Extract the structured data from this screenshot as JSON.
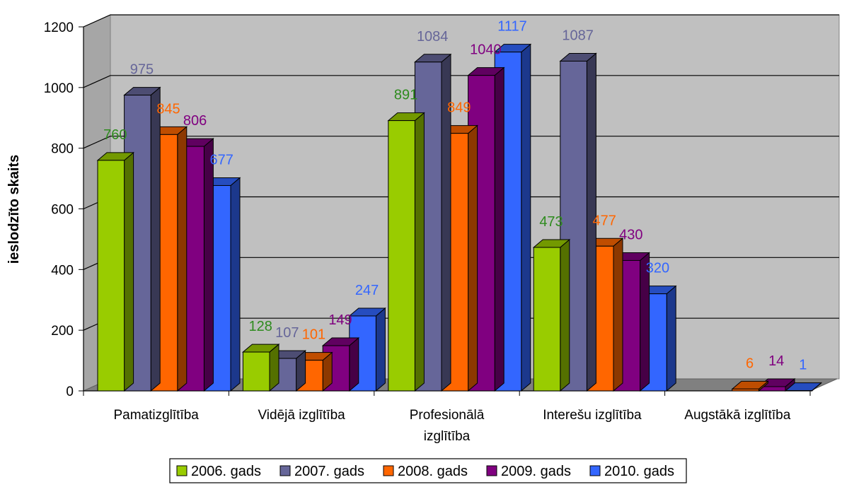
{
  "chart_data": {
    "type": "bar",
    "title": "",
    "xlabel": "",
    "ylabel": "ieslodzīto skaits",
    "ylim": [
      0,
      1200
    ],
    "yticks": [
      "0",
      "200",
      "400",
      "600",
      "800",
      "1000",
      "1200"
    ],
    "yticks_values": [
      0,
      200,
      400,
      600,
      800,
      1000,
      1200
    ],
    "categories": [
      [
        "Pamatizglītība"
      ],
      [
        "Vidējā izglītība"
      ],
      [
        "Profesionālā",
        "izglītība"
      ],
      [
        "Interešu izglītība"
      ],
      [
        "Augstākā izglītība"
      ]
    ],
    "grid": true,
    "legend_position": "bottom",
    "series": [
      {
        "name": "2006. gads",
        "color": "#99cc00",
        "label_color": "#2e8b1e",
        "values": [
          760,
          128,
          891,
          473,
          null
        ]
      },
      {
        "name": "2007. gads",
        "color": "#666699",
        "label_color": "#666699",
        "values": [
          975,
          107,
          1084,
          1087,
          null
        ]
      },
      {
        "name": "2008. gads",
        "color": "#ff6600",
        "label_color": "#ff6600",
        "values": [
          845,
          101,
          849,
          477,
          6
        ]
      },
      {
        "name": "2009. gads",
        "color": "#800080",
        "label_color": "#800080",
        "values": [
          806,
          149,
          1040,
          430,
          14
        ]
      },
      {
        "name": "2010. gads",
        "color": "#3366ff",
        "label_color": "#3366ff",
        "values": [
          677,
          247,
          1117,
          320,
          1
        ]
      }
    ]
  }
}
